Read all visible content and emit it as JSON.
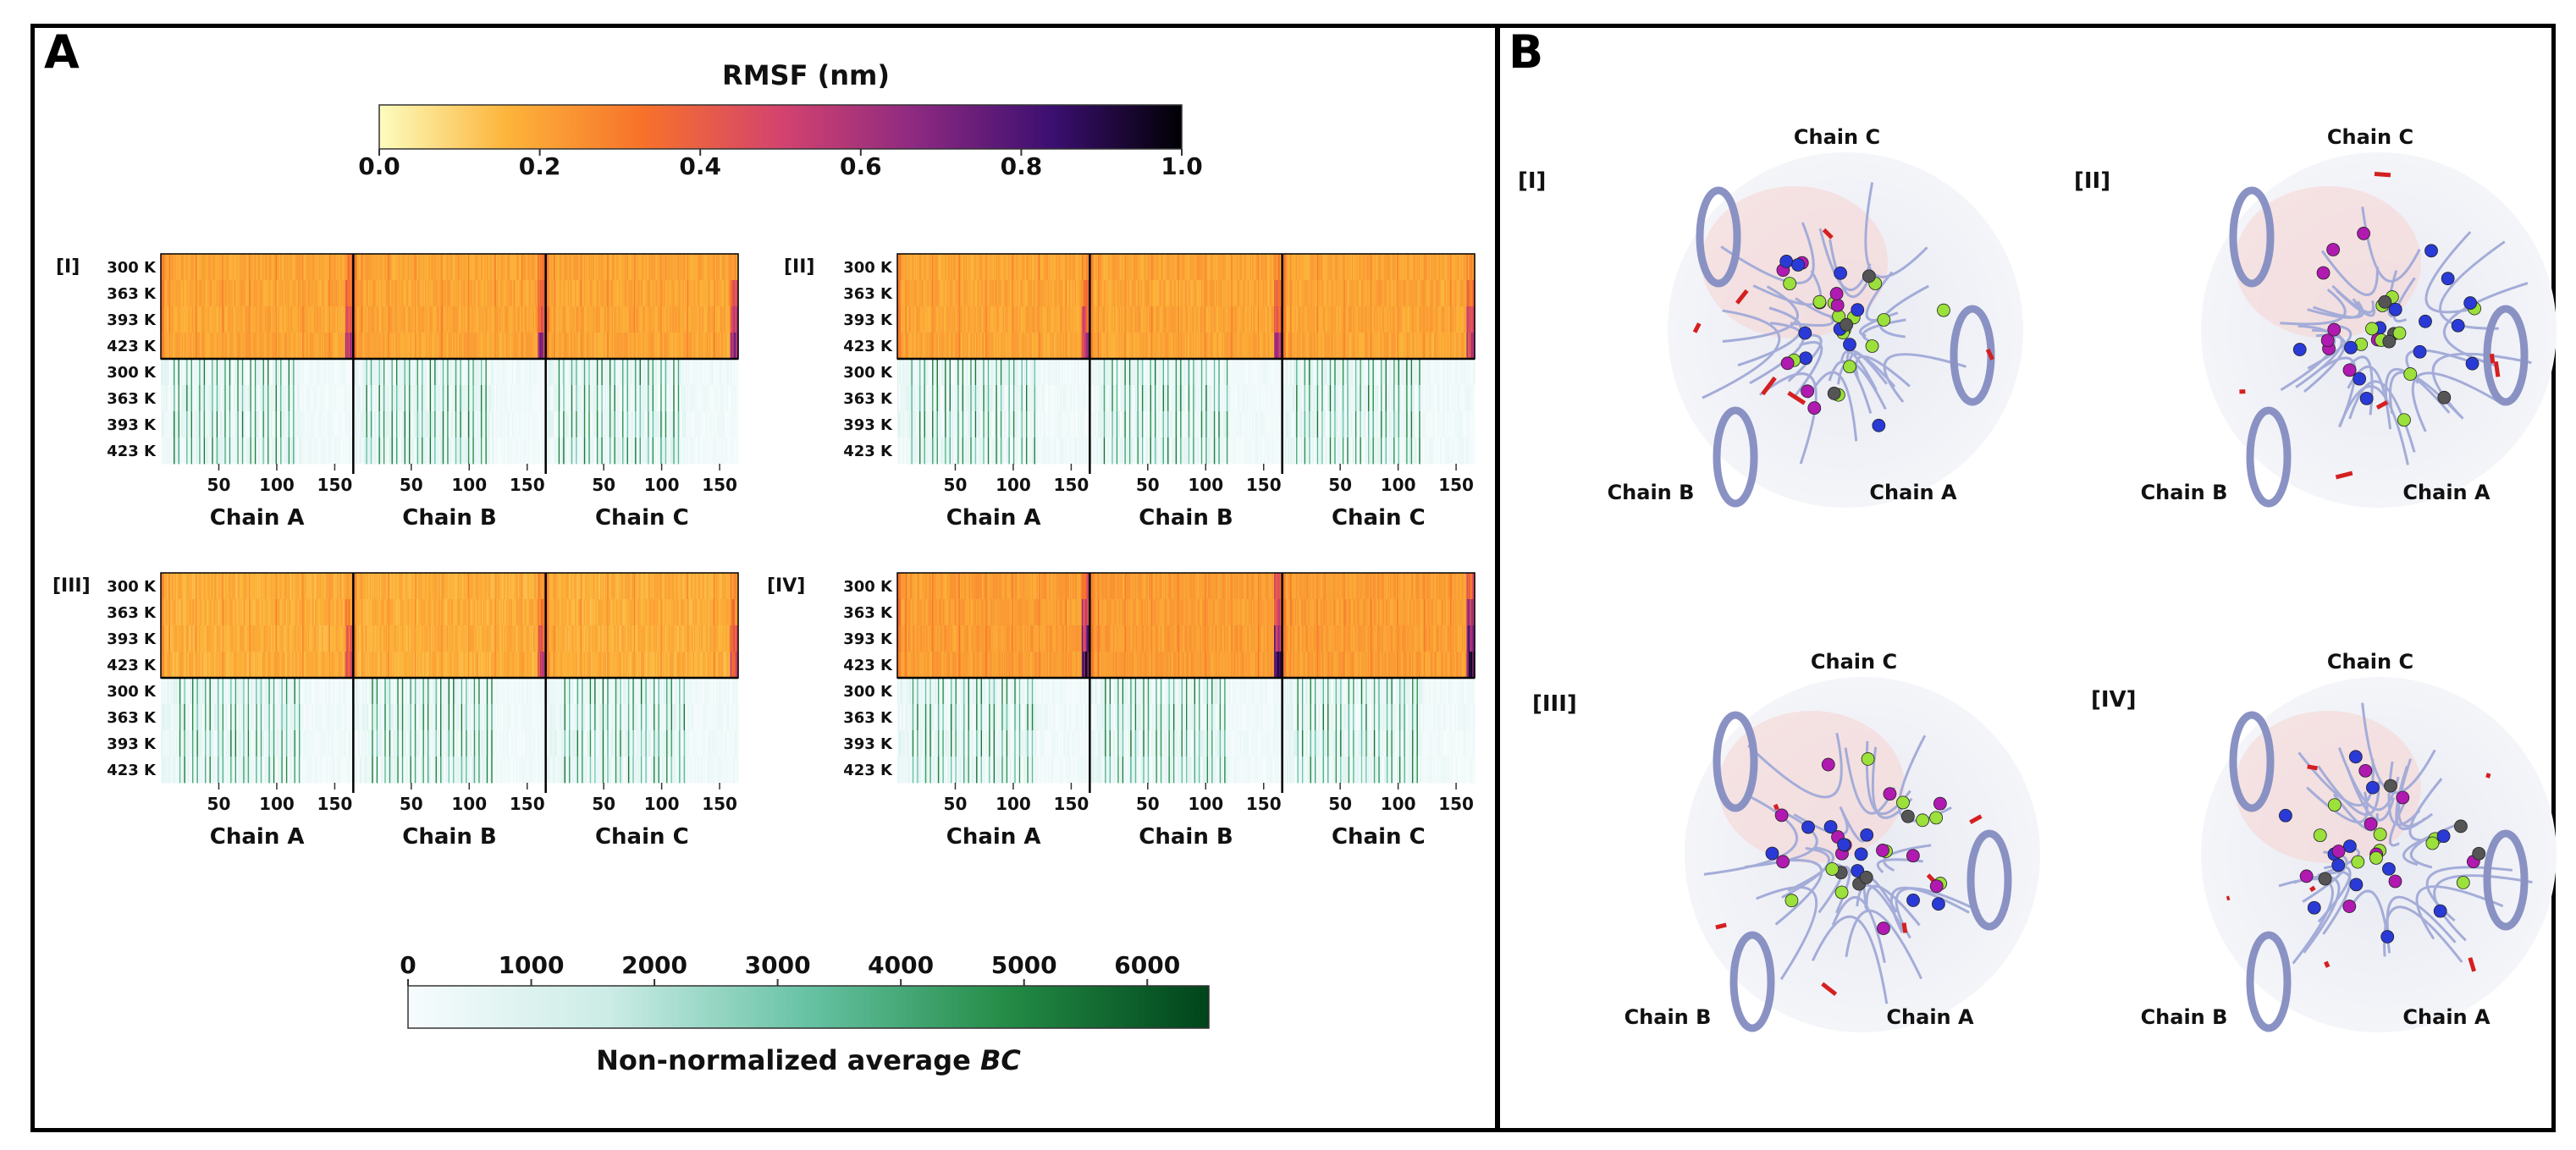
{
  "panels": {
    "a_label": "A",
    "b_label": "B"
  },
  "rmsf_colorbar": {
    "title": "RMSF (nm)",
    "ticks": [
      "0.0",
      "0.2",
      "0.4",
      "0.6",
      "0.8",
      "1.0"
    ],
    "range": [
      0.0,
      1.0
    ],
    "colors": [
      "#fcfdbf",
      "#fcb43a",
      "#f7712a",
      "#d4436e",
      "#8c2981",
      "#3b0f70",
      "#000004"
    ]
  },
  "bc_colorbar": {
    "label": "Non-normalized average",
    "label_italic": "BC",
    "ticks": [
      "0",
      "1000",
      "2000",
      "3000",
      "4000",
      "5000",
      "6000"
    ],
    "range": [
      0,
      6500
    ],
    "colors": [
      "#f7fcfd",
      "#ccece6",
      "#66c2a4",
      "#238b45",
      "#00441b"
    ]
  },
  "chart_data": [
    {
      "type": "heatmap",
      "system": "[I]",
      "metric_rows": "RMSF (nm)",
      "temperatures": [
        "300 K",
        "363 K",
        "393 K",
        "423 K"
      ],
      "bc_rows": [
        "300 K",
        "363 K",
        "393 K",
        "423 K"
      ],
      "chains": [
        "Chain A",
        "Chain B",
        "Chain C"
      ],
      "residue_range": [
        1,
        165
      ],
      "xticks": [
        "50",
        "100",
        "150"
      ],
      "rmsf_typical": 0.2,
      "rmsf_peaks_c_terminus": [
        0.35,
        0.45,
        0.55,
        0.7
      ]
    },
    {
      "type": "heatmap",
      "system": "[II]",
      "temperatures": [
        "300 K",
        "363 K",
        "393 K",
        "423 K"
      ],
      "bc_rows": [
        "300 K",
        "363 K",
        "393 K",
        "423 K"
      ],
      "chains": [
        "Chain A",
        "Chain B",
        "Chain C"
      ],
      "residue_range": [
        1,
        165
      ],
      "xticks": [
        "50",
        "100",
        "150"
      ],
      "rmsf_typical": 0.2,
      "rmsf_peaks_c_terminus": [
        0.3,
        0.4,
        0.5,
        0.65
      ]
    },
    {
      "type": "heatmap",
      "system": "[III]",
      "temperatures": [
        "300 K",
        "363 K",
        "393 K",
        "423 K"
      ],
      "bc_rows": [
        "300 K",
        "363 K",
        "393 K",
        "423 K"
      ],
      "chains": [
        "Chain A",
        "Chain B",
        "Chain C"
      ],
      "residue_range": [
        1,
        165
      ],
      "xticks": [
        "50",
        "100",
        "150"
      ],
      "rmsf_typical": 0.18,
      "rmsf_peaks_c_terminus": [
        0.3,
        0.35,
        0.45,
        0.55
      ]
    },
    {
      "type": "heatmap",
      "system": "[IV]",
      "temperatures": [
        "300 K",
        "363 K",
        "393 K",
        "423 K"
      ],
      "bc_rows": [
        "300 K",
        "363 K",
        "393 K",
        "423 K"
      ],
      "chains": [
        "Chain A",
        "Chain B",
        "Chain C"
      ],
      "residue_range": [
        1,
        165
      ],
      "xticks": [
        "50",
        "100",
        "150"
      ],
      "rmsf_typical": 0.22,
      "rmsf_peaks_c_terminus": [
        0.5,
        0.6,
        0.75,
        0.9
      ]
    }
  ],
  "structures": [
    {
      "label": "[I]",
      "chain_top": "Chain C",
      "chain_left": "Chain B",
      "chain_right": "Chain A"
    },
    {
      "label": "[II]",
      "chain_top": "Chain C",
      "chain_left": "Chain B",
      "chain_right": "Chain A"
    },
    {
      "label": "[III]",
      "chain_top": "Chain C",
      "chain_left": "Chain B",
      "chain_right": "Chain A"
    },
    {
      "label": "[IV]",
      "chain_top": "Chain C",
      "chain_left": "Chain B",
      "chain_right": "Chain A"
    }
  ]
}
